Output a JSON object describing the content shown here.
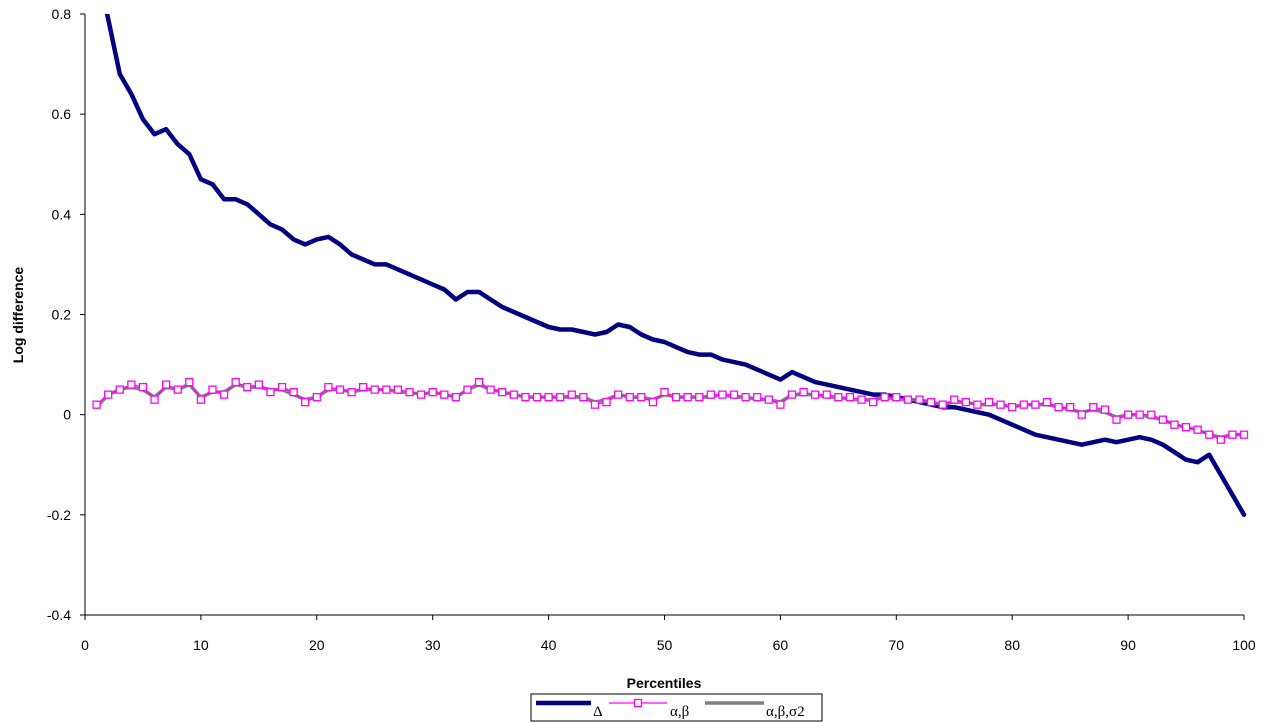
{
  "chart_data": {
    "type": "line",
    "title": "",
    "xlabel": "Percentiles",
    "ylabel": "Log difference",
    "xlim": [
      0,
      100
    ],
    "ylim": [
      -0.4,
      0.8
    ],
    "x_ticks": [
      "0",
      "10",
      "20",
      "30",
      "40",
      "50",
      "60",
      "70",
      "80",
      "90",
      "100"
    ],
    "y_ticks": [
      "-0.4",
      "-0.2",
      "0",
      "0.2",
      "0.4",
      "0.6",
      "0.8"
    ],
    "grid": false,
    "legend_position": "bottom",
    "x": [
      1,
      2,
      3,
      4,
      5,
      6,
      7,
      8,
      9,
      10,
      11,
      12,
      13,
      14,
      15,
      16,
      17,
      18,
      19,
      20,
      21,
      22,
      23,
      24,
      25,
      26,
      27,
      28,
      29,
      30,
      31,
      32,
      33,
      34,
      35,
      36,
      37,
      38,
      39,
      40,
      41,
      42,
      43,
      44,
      45,
      46,
      47,
      48,
      49,
      50,
      51,
      52,
      53,
      54,
      55,
      56,
      57,
      58,
      59,
      60,
      61,
      62,
      63,
      64,
      65,
      66,
      67,
      68,
      69,
      70,
      71,
      72,
      73,
      74,
      75,
      76,
      77,
      78,
      79,
      80,
      81,
      82,
      83,
      84,
      85,
      86,
      87,
      88,
      89,
      90,
      91,
      92,
      93,
      94,
      95,
      96,
      97,
      98,
      99,
      100
    ],
    "series": [
      {
        "name": "Δ",
        "color": "#000080",
        "marker": "none",
        "values": [
          0.9,
          0.79,
          0.68,
          0.64,
          0.59,
          0.56,
          0.57,
          0.54,
          0.52,
          0.47,
          0.46,
          0.43,
          0.43,
          0.42,
          0.4,
          0.38,
          0.37,
          0.35,
          0.34,
          0.35,
          0.355,
          0.34,
          0.32,
          0.31,
          0.3,
          0.3,
          0.29,
          0.28,
          0.27,
          0.26,
          0.25,
          0.23,
          0.245,
          0.245,
          0.23,
          0.215,
          0.205,
          0.195,
          0.185,
          0.175,
          0.17,
          0.17,
          0.165,
          0.16,
          0.165,
          0.18,
          0.175,
          0.16,
          0.15,
          0.145,
          0.135,
          0.125,
          0.12,
          0.12,
          0.11,
          0.105,
          0.1,
          0.09,
          0.08,
          0.07,
          0.085,
          0.075,
          0.065,
          0.06,
          0.055,
          0.05,
          0.045,
          0.04,
          0.04,
          0.035,
          0.03,
          0.025,
          0.02,
          0.015,
          0.015,
          0.01,
          0.005,
          0.0,
          -0.01,
          -0.02,
          -0.03,
          -0.04,
          -0.045,
          -0.05,
          -0.055,
          -0.06,
          -0.055,
          -0.05,
          -0.055,
          -0.05,
          -0.045,
          -0.05,
          -0.06,
          -0.075,
          -0.09,
          -0.095,
          -0.08,
          -0.12,
          -0.16,
          -0.2
        ]
      },
      {
        "name": "α,β",
        "color": "#ff00ff",
        "marker": "square",
        "values": [
          0.02,
          0.04,
          0.05,
          0.06,
          0.055,
          0.03,
          0.06,
          0.05,
          0.065,
          0.03,
          0.05,
          0.04,
          0.065,
          0.055,
          0.06,
          0.045,
          0.055,
          0.045,
          0.025,
          0.035,
          0.055,
          0.05,
          0.045,
          0.055,
          0.05,
          0.05,
          0.05,
          0.045,
          0.04,
          0.045,
          0.04,
          0.035,
          0.05,
          0.065,
          0.05,
          0.045,
          0.04,
          0.035,
          0.035,
          0.035,
          0.035,
          0.04,
          0.035,
          0.02,
          0.025,
          0.04,
          0.035,
          0.035,
          0.025,
          0.045,
          0.035,
          0.035,
          0.035,
          0.04,
          0.04,
          0.04,
          0.035,
          0.035,
          0.03,
          0.02,
          0.04,
          0.045,
          0.04,
          0.04,
          0.035,
          0.035,
          0.03,
          0.025,
          0.035,
          0.035,
          0.03,
          0.03,
          0.025,
          0.02,
          0.03,
          0.025,
          0.02,
          0.025,
          0.02,
          0.015,
          0.02,
          0.02,
          0.025,
          0.015,
          0.015,
          0.0,
          0.015,
          0.01,
          -0.01,
          0.0,
          0.0,
          0.0,
          -0.01,
          -0.02,
          -0.025,
          -0.03,
          -0.04,
          -0.05,
          -0.04,
          -0.04
        ]
      },
      {
        "name": "α,β,σ2",
        "color": "#808080",
        "marker": "none",
        "values": [
          0.015,
          0.04,
          0.05,
          0.055,
          0.05,
          0.035,
          0.055,
          0.05,
          0.06,
          0.035,
          0.045,
          0.045,
          0.06,
          0.055,
          0.055,
          0.05,
          0.05,
          0.04,
          0.03,
          0.035,
          0.05,
          0.05,
          0.045,
          0.05,
          0.05,
          0.05,
          0.045,
          0.045,
          0.04,
          0.045,
          0.04,
          0.035,
          0.05,
          0.06,
          0.05,
          0.045,
          0.04,
          0.035,
          0.035,
          0.035,
          0.035,
          0.035,
          0.035,
          0.025,
          0.03,
          0.04,
          0.035,
          0.035,
          0.03,
          0.04,
          0.035,
          0.035,
          0.035,
          0.035,
          0.04,
          0.035,
          0.035,
          0.03,
          0.03,
          0.025,
          0.04,
          0.04,
          0.04,
          0.035,
          0.035,
          0.03,
          0.03,
          0.03,
          0.035,
          0.03,
          0.03,
          0.03,
          0.025,
          0.02,
          0.025,
          0.025,
          0.02,
          0.02,
          0.02,
          0.015,
          0.02,
          0.02,
          0.02,
          0.015,
          0.01,
          0.005,
          0.01,
          0.005,
          -0.005,
          0.0,
          0.0,
          -0.005,
          -0.01,
          -0.02,
          -0.025,
          -0.03,
          -0.04,
          -0.045,
          -0.04,
          -0.04
        ]
      }
    ]
  }
}
